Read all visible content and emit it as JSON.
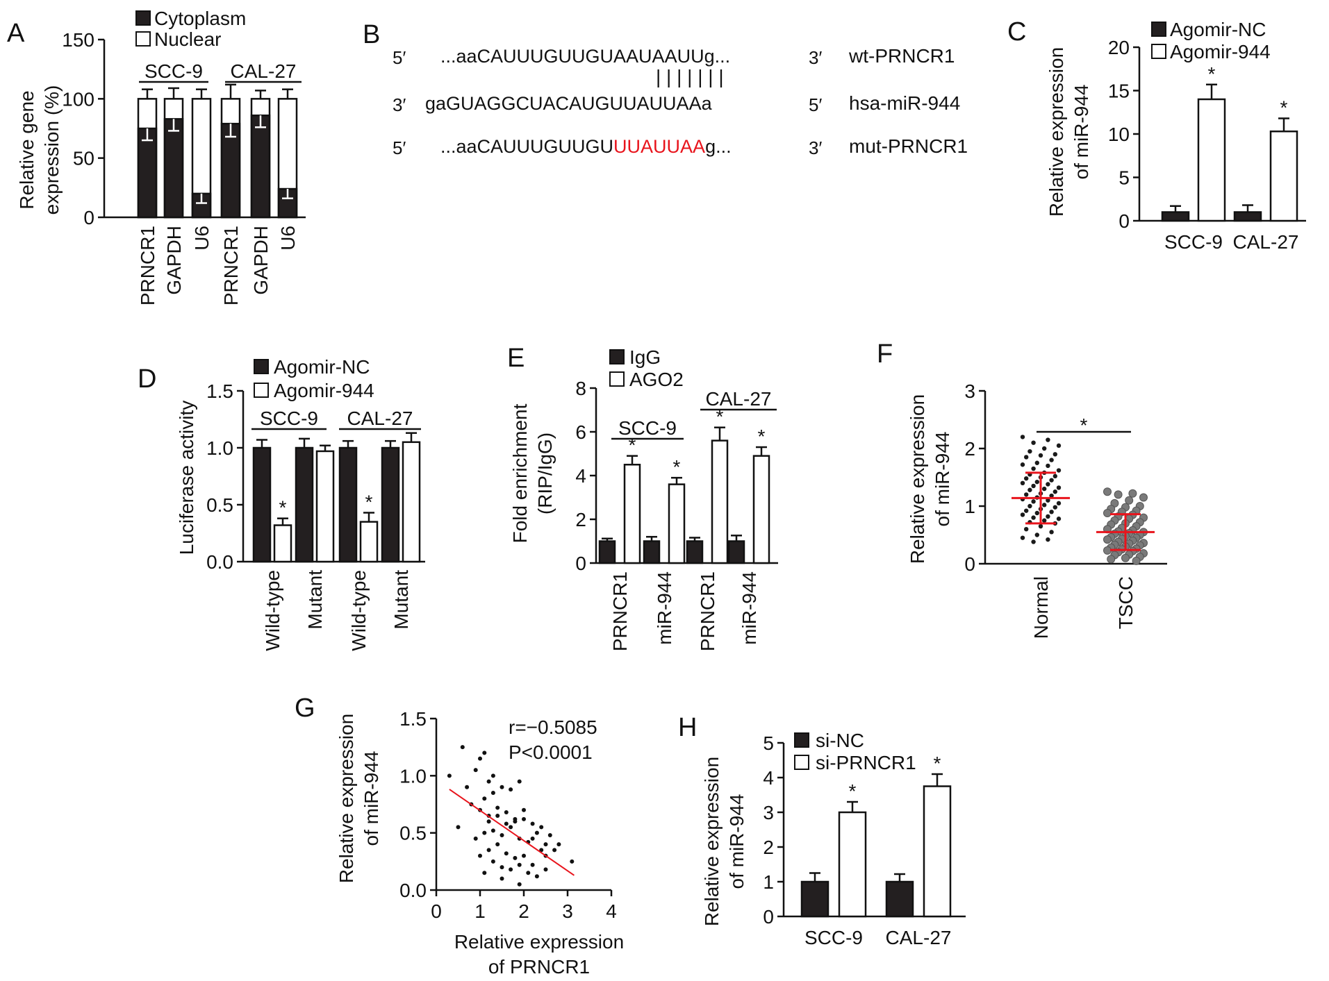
{
  "panel_A": {
    "letter": "A",
    "legend": [
      "Cytoplasm",
      "Nuclear"
    ],
    "ylabel_lines": [
      "Relative gene",
      "expression (%)"
    ],
    "groups": [
      "SCC-9",
      "CAL-27"
    ]
  },
  "panel_B": {
    "letter": "B",
    "rows": [
      {
        "left": "5′",
        "pre": "...aaCAUUUGUUGUAAUAAUUg...",
        "mut": "",
        "post": "",
        "right": "3′",
        "name": "wt-PRNCR1"
      },
      {
        "left": "3′",
        "pre": "gaGUAGGCUACAUGUUAUUAAa",
        "mut": "",
        "post": "",
        "right": "5′",
        "name": "hsa-miR-944"
      },
      {
        "left": "5′",
        "pre": "...aaCAUUUGUUGU",
        "mut": "UUAUUAA",
        "post": "g...",
        "right": "3′",
        "name": "mut-PRNCR1"
      }
    ],
    "pair_marks": "| | | | | | |",
    "mutation_color": "#e8141c"
  },
  "panel_C": {
    "letter": "C",
    "legend": [
      "Agomir-NC",
      "Agomir-944"
    ],
    "ylabel_lines": [
      "Relative expression",
      "of miR-944"
    ]
  },
  "panel_D": {
    "letter": "D",
    "legend": [
      "Agomir-NC",
      "Agomir-944"
    ],
    "ylabel_lines": [
      "Luciferase activity"
    ],
    "groups": [
      "SCC-9",
      "CAL-27"
    ]
  },
  "panel_E": {
    "letter": "E",
    "legend": [
      "IgG",
      "AGO2"
    ],
    "ylabel_lines": [
      "Fold enrichment",
      "(RIP/IgG)"
    ],
    "groups": [
      "SCC-9",
      "CAL-27"
    ]
  },
  "panel_F": {
    "letter": "F",
    "ylabel_lines": [
      "Relative expression",
      "of miR-944"
    ],
    "accent_color": "#e8141c"
  },
  "panel_G": {
    "letter": "G",
    "ylabel_lines": [
      "Relative expression",
      "of miR-944"
    ],
    "xlabel_lines": [
      "Relative expression",
      "of PRNCR1"
    ],
    "stats": [
      "r=−0.5085",
      "P<0.0001"
    ],
    "line_color": "#e8141c"
  },
  "panel_H": {
    "letter": "H",
    "legend": [
      "si-NC",
      "si-PRNCR1"
    ],
    "ylabel_lines": [
      "Relative expression",
      "of miR-944"
    ]
  },
  "colors": {
    "bar_dark": "#231f20",
    "bar_light": "#ffffff",
    "axis": "#111111"
  },
  "chart_data": [
    {
      "id": "A",
      "type": "bar",
      "stacked": true,
      "categories": [
        "PRNCR1",
        "GAPDH",
        "U6",
        "PRNCR1",
        "GAPDH",
        "U6"
      ],
      "series": [
        {
          "name": "Cytoplasm",
          "values": [
            75,
            83,
            20,
            79,
            86,
            24
          ],
          "error": [
            10,
            10,
            8,
            11,
            10,
            8
          ]
        },
        {
          "name": "Nuclear",
          "values": [
            25,
            17,
            80,
            21,
            14,
            76
          ],
          "error": [
            8,
            9,
            8,
            12,
            7,
            8
          ]
        }
      ],
      "yticks": [
        0,
        50,
        100,
        150
      ],
      "ylim": [
        0,
        150
      ],
      "grid": false,
      "legend_position": "top-left"
    },
    {
      "id": "C",
      "type": "bar",
      "categories": [
        "SCC-9",
        "CAL-27"
      ],
      "series": [
        {
          "name": "Agomir-NC",
          "values": [
            1.0,
            1.0
          ],
          "error": [
            0.7,
            0.8
          ]
        },
        {
          "name": "Agomir-944",
          "values": [
            14.0,
            10.3
          ],
          "error": [
            1.7,
            1.5
          ]
        }
      ],
      "significant": [
        false,
        true
      ],
      "yticks": [
        0,
        5,
        10,
        15,
        20
      ],
      "ylim": [
        0,
        20
      ],
      "grid": false,
      "legend_position": "top-right"
    },
    {
      "id": "D",
      "type": "bar",
      "categories": [
        "Wild-type",
        "Mutant",
        "Wild-type",
        "Mutant"
      ],
      "series": [
        {
          "name": "Agomir-NC",
          "values": [
            1.0,
            1.0,
            1.0,
            1.0
          ],
          "error": [
            0.07,
            0.08,
            0.06,
            0.06
          ]
        },
        {
          "name": "Agomir-944",
          "values": [
            0.32,
            0.97,
            0.35,
            1.05
          ],
          "error": [
            0.06,
            0.05,
            0.08,
            0.08
          ]
        }
      ],
      "significant": [
        true,
        false,
        true,
        false
      ],
      "yticks": [
        0.0,
        0.5,
        1.0,
        1.5
      ],
      "ylim": [
        0,
        1.5
      ],
      "grid": false,
      "legend_position": "top"
    },
    {
      "id": "E",
      "type": "bar",
      "categories": [
        "PRNCR1",
        "miR-944",
        "PRNCR1",
        "miR-944"
      ],
      "series": [
        {
          "name": "IgG",
          "values": [
            1.0,
            1.0,
            1.0,
            1.0
          ],
          "error": [
            0.12,
            0.2,
            0.16,
            0.26
          ]
        },
        {
          "name": "AGO2",
          "values": [
            4.5,
            3.6,
            5.6,
            4.9
          ],
          "error": [
            0.4,
            0.3,
            0.6,
            0.4
          ]
        }
      ],
      "significant": [
        true,
        true,
        true,
        true
      ],
      "yticks": [
        0,
        2,
        4,
        6,
        8
      ],
      "ylim": [
        0,
        8
      ],
      "grid": false,
      "legend_position": "top-left"
    },
    {
      "id": "F",
      "type": "scatter",
      "categories": [
        "Normal",
        "TSCC"
      ],
      "summary": [
        {
          "group": "Normal",
          "mean": 1.14,
          "sd": 0.44
        },
        {
          "group": "TSCC",
          "mean": 0.55,
          "sd": 0.31
        }
      ],
      "points": {
        "Normal": [
          2.2,
          2.15,
          2.1,
          2.05,
          2.0,
          1.95,
          1.9,
          1.88,
          1.85,
          1.8,
          1.75,
          1.72,
          1.7,
          1.65,
          1.62,
          1.58,
          1.55,
          1.52,
          1.5,
          1.48,
          1.45,
          1.42,
          1.4,
          1.38,
          1.35,
          1.32,
          1.3,
          1.28,
          1.25,
          1.22,
          1.2,
          1.18,
          1.15,
          1.12,
          1.1,
          1.08,
          1.05,
          1.02,
          1.0,
          0.98,
          0.95,
          0.92,
          0.9,
          0.88,
          0.85,
          0.82,
          0.8,
          0.78,
          0.75,
          0.72,
          0.7,
          0.65,
          0.6,
          0.55,
          0.5,
          0.45,
          0.42,
          0.38
        ],
        "TSCC": [
          1.25,
          1.22,
          1.2,
          1.15,
          1.1,
          1.05,
          1.0,
          0.98,
          0.95,
          0.92,
          0.9,
          0.88,
          0.85,
          0.82,
          0.8,
          0.78,
          0.75,
          0.72,
          0.7,
          0.68,
          0.65,
          0.62,
          0.6,
          0.58,
          0.56,
          0.55,
          0.53,
          0.52,
          0.5,
          0.48,
          0.46,
          0.45,
          0.43,
          0.42,
          0.4,
          0.38,
          0.36,
          0.35,
          0.33,
          0.32,
          0.3,
          0.28,
          0.26,
          0.25,
          0.23,
          0.22,
          0.2,
          0.18,
          0.16,
          0.15,
          0.12,
          0.1,
          0.08,
          0.05
        ]
      },
      "yticks": [
        0,
        1,
        2,
        3
      ],
      "ylim": [
        0,
        3
      ],
      "grid": false
    },
    {
      "id": "G",
      "type": "scatter",
      "x": [
        0.3,
        0.6,
        0.7,
        0.9,
        1.0,
        1.1,
        1.2,
        1.3,
        1.1,
        1.3,
        1.5,
        1.7,
        1.9,
        0.5,
        0.8,
        1.0,
        1.2,
        1.4,
        1.6,
        1.8,
        2.0,
        2.2,
        2.4,
        0.9,
        1.1,
        1.3,
        1.5,
        1.7,
        1.9,
        2.1,
        2.3,
        2.5,
        2.7,
        1.0,
        1.2,
        1.4,
        1.6,
        1.8,
        2.0,
        2.2,
        1.1,
        1.3,
        1.5,
        1.7,
        1.9,
        2.1,
        2.3,
        2.5,
        1.2,
        1.4,
        1.6,
        1.8,
        2.0,
        2.2,
        2.4,
        2.6,
        2.8,
        3.1,
        1.5,
        1.9,
        2.5
      ],
      "y": [
        1.0,
        1.25,
        0.9,
        1.05,
        1.15,
        1.2,
        0.95,
        1.0,
        0.8,
        0.85,
        0.9,
        0.88,
        0.95,
        0.55,
        0.75,
        0.7,
        0.65,
        0.72,
        0.68,
        0.6,
        0.62,
        0.58,
        0.55,
        0.45,
        0.5,
        0.52,
        0.48,
        0.55,
        0.45,
        0.42,
        0.5,
        0.4,
        0.35,
        0.3,
        0.35,
        0.4,
        0.32,
        0.28,
        0.3,
        0.22,
        0.15,
        0.25,
        0.2,
        0.18,
        0.22,
        0.15,
        0.12,
        0.18,
        0.6,
        0.65,
        0.58,
        0.62,
        0.7,
        0.45,
        0.35,
        0.48,
        0.4,
        0.25,
        0.1,
        0.05,
        0.3
      ],
      "fit": {
        "slope": -0.264,
        "intercept": 0.96
      },
      "xticks": [
        0,
        1,
        2,
        3,
        4
      ],
      "xlim": [
        0,
        4
      ],
      "yticks": [
        0.0,
        0.5,
        1.0,
        1.5
      ],
      "ylim": [
        0,
        1.5
      ],
      "grid": false
    },
    {
      "id": "H",
      "type": "bar",
      "categories": [
        "SCC-9",
        "CAL-27"
      ],
      "series": [
        {
          "name": "si-NC",
          "values": [
            1.0,
            1.0
          ],
          "error": [
            0.25,
            0.22
          ]
        },
        {
          "name": "si-PRNCR1",
          "values": [
            3.0,
            3.75
          ],
          "error": [
            0.3,
            0.35
          ]
        }
      ],
      "significant": [
        true,
        true
      ],
      "yticks": [
        0,
        1,
        2,
        3,
        4,
        5
      ],
      "ylim": [
        0,
        5
      ],
      "grid": false,
      "legend_position": "top-left"
    }
  ]
}
